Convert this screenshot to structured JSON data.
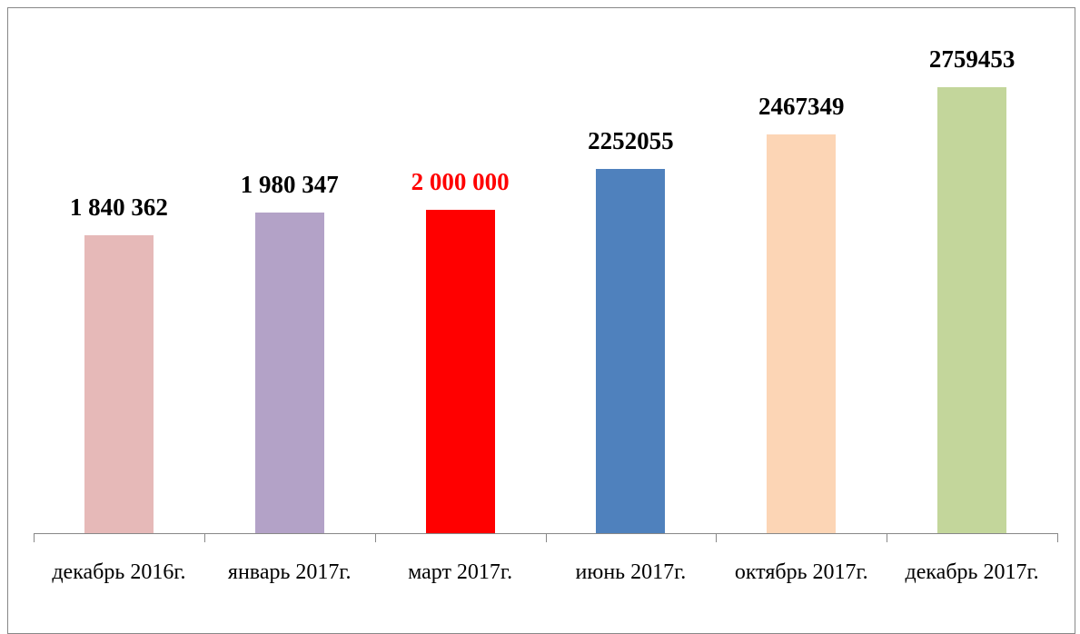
{
  "chart_data": {
    "type": "bar",
    "categories": [
      "декабрь 2016г.",
      "январь 2017г.",
      "март 2017г.",
      "июнь 2017г.",
      "октябрь 2017г.",
      "декабрь 2017г."
    ],
    "values": [
      1840362,
      1980347,
      2000000,
      2252055,
      2467349,
      2759453
    ],
    "value_labels": [
      "1 840 362",
      "1 980 347",
      "2 000 000",
      "2252055",
      "2467349",
      "2759453"
    ],
    "colors": [
      "#e6b9b8",
      "#b3a2c7",
      "#ff0000",
      "#4f81bd",
      "#fcd5b5",
      "#c3d69b"
    ],
    "label_colors": [
      "#000000",
      "#000000",
      "#ff0000",
      "#000000",
      "#000000",
      "#000000"
    ],
    "ylim": [
      0,
      3000000
    ]
  }
}
